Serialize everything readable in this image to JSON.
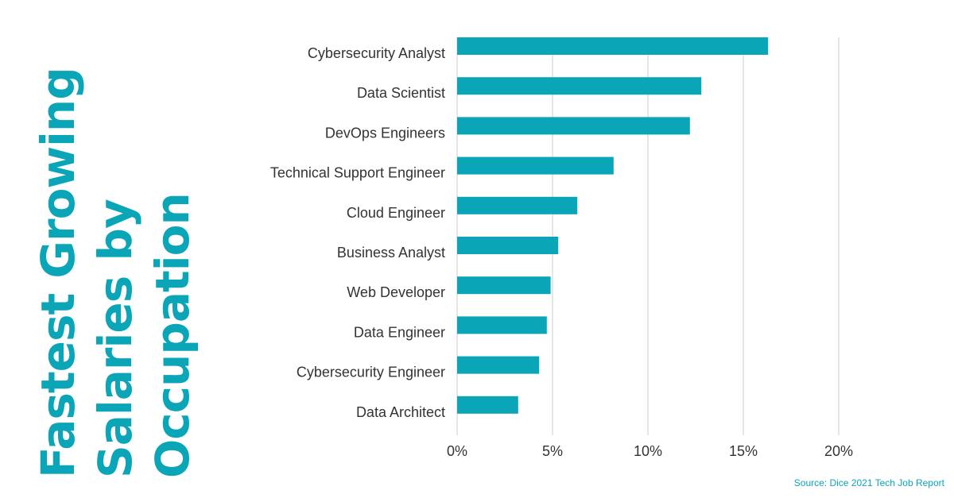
{
  "title": {
    "lines": [
      "Fastest Growing",
      "Salaries by",
      "Occupation"
    ]
  },
  "source": "Source: Dice 2021 Tech Job Report",
  "colors": {
    "bar": "#0ba5b8",
    "title": "#0ba5b8",
    "grid": "#cccccc"
  },
  "chart_data": {
    "type": "bar",
    "orientation": "horizontal",
    "categories": [
      "Cybersecurity Analyst",
      "Data Scientist",
      "DevOps Engineers",
      "Technical Support Engineer",
      "Cloud Engineer",
      "Business Analyst",
      "Web Developer",
      "Data Engineer",
      "Cybersecurity Engineer",
      "Data Architect"
    ],
    "values": [
      16.3,
      12.8,
      12.2,
      8.2,
      6.3,
      5.3,
      4.9,
      4.7,
      4.3,
      3.2
    ],
    "xlim": [
      0,
      20
    ],
    "xticks": [
      0,
      5,
      10,
      15,
      20
    ],
    "xtick_labels": [
      "0%",
      "5%",
      "10%",
      "15%",
      "20%"
    ],
    "grid": true
  }
}
